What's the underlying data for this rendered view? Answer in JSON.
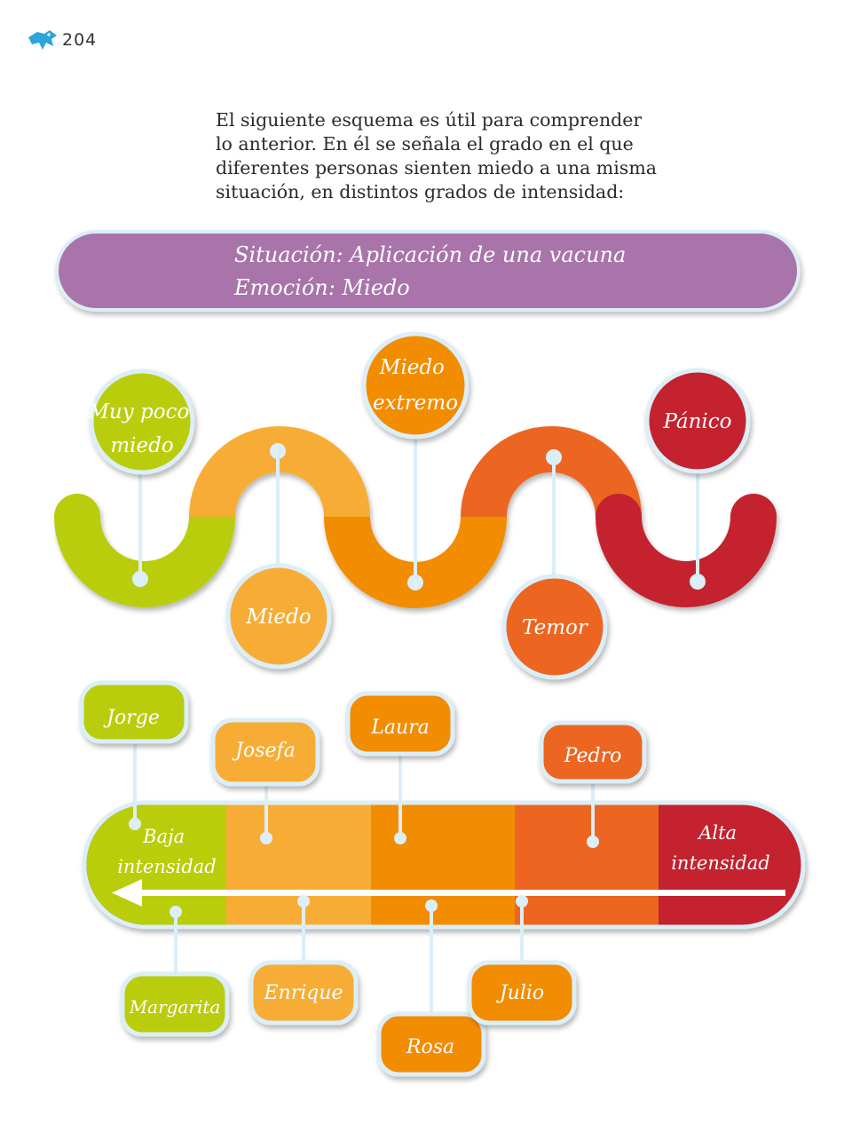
{
  "page": {
    "number": "204"
  },
  "intro": {
    "lines": [
      "El siguiente esquema es útil para comprender",
      "lo anterior. En él se señala el grado en el que",
      "diferentes personas sienten miedo a una misma",
      "situación, en distintos grados de intensidad:"
    ]
  },
  "banner": {
    "situacion": "Situación: Aplicación de una vacuna",
    "emocion": "Emoción: Miedo"
  },
  "levels": [
    {
      "lines": [
        "Muy poco",
        "miedo"
      ],
      "color": "#b9cd0a"
    },
    {
      "lines": [
        "Miedo"
      ],
      "color": "#f7ad35"
    },
    {
      "lines": [
        "Miedo",
        "extremo"
      ],
      "color": "#f28c00"
    },
    {
      "lines": [
        "Temor"
      ],
      "color": "#ec6622"
    },
    {
      "lines": [
        "Pánico"
      ],
      "color": "#c3232e"
    }
  ],
  "scale": {
    "low_label": [
      "Baja",
      "intensidad"
    ],
    "high_label": [
      "Alta",
      "intensidad"
    ]
  },
  "people": [
    {
      "name": "Jorge",
      "color": "#b9cd0a"
    },
    {
      "name": "Josefa",
      "color": "#f7ad35"
    },
    {
      "name": "Laura",
      "color": "#f28c00"
    },
    {
      "name": "Pedro",
      "color": "#ec6622"
    },
    {
      "name": "Margarita",
      "color": "#b9cd0a"
    },
    {
      "name": "Enrique",
      "color": "#f7ad35"
    },
    {
      "name": "Rosa",
      "color": "#f28c00"
    },
    {
      "name": "Julio",
      "color": "#f28c00"
    }
  ]
}
